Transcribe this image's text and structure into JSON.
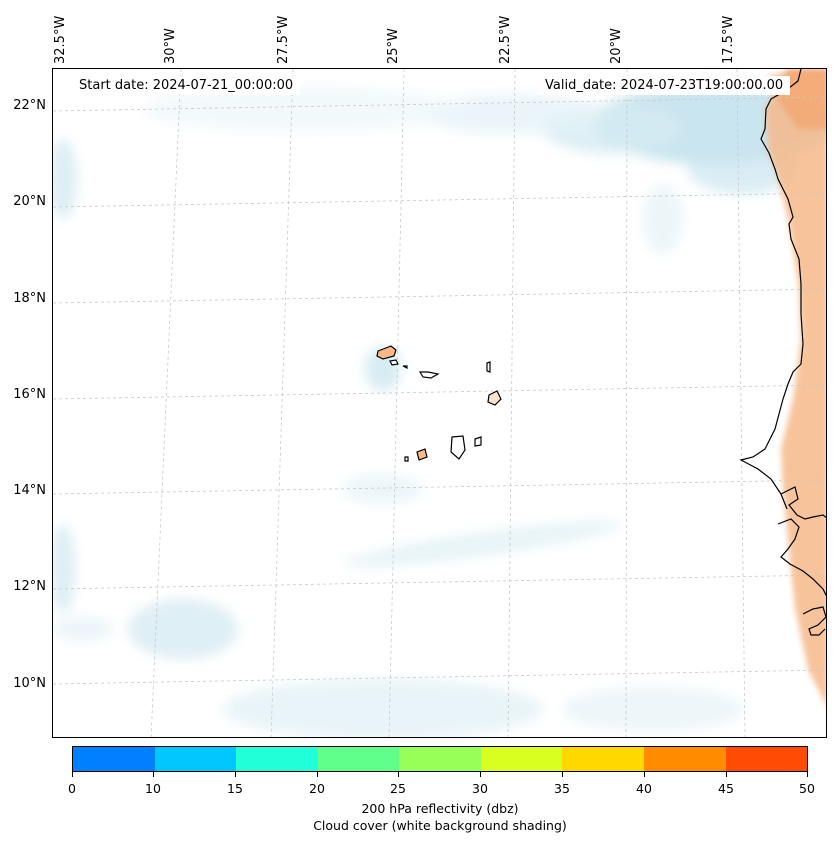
{
  "map": {
    "start_date_label": "Start date: 2024-07-21_00:00:00",
    "valid_date_label": "Valid_date: 2024-07-23T19:00:00.00",
    "longitude_labels": [
      "32.5°W",
      "30°W",
      "27.5°W",
      "25°W",
      "22.5°W",
      "20°W",
      "17.5°W"
    ],
    "latitude_labels": [
      "22°N",
      "20°N",
      "18°N",
      "16°N",
      "14°N",
      "12°N",
      "10°N"
    ],
    "colors": {
      "coast": "#000000",
      "grid": "#c8c8c8",
      "cloud_light": "#e8f5f9",
      "cloud_mid": "#c9e6ef",
      "reflectivity_land": "#f6b98a"
    }
  },
  "colorbar": {
    "ticks": [
      "0",
      "10",
      "15",
      "20",
      "25",
      "30",
      "35",
      "40",
      "45",
      "50"
    ],
    "colors": [
      "#0080ff",
      "#00c8ff",
      "#20ffd8",
      "#60ff8c",
      "#98ff58",
      "#d8ff20",
      "#ffd800",
      "#ff8c00",
      "#ff4c00"
    ],
    "label_line1": "200 hPa reflectivity (dbz)",
    "label_line2": "Cloud cover (white background shading)"
  }
}
